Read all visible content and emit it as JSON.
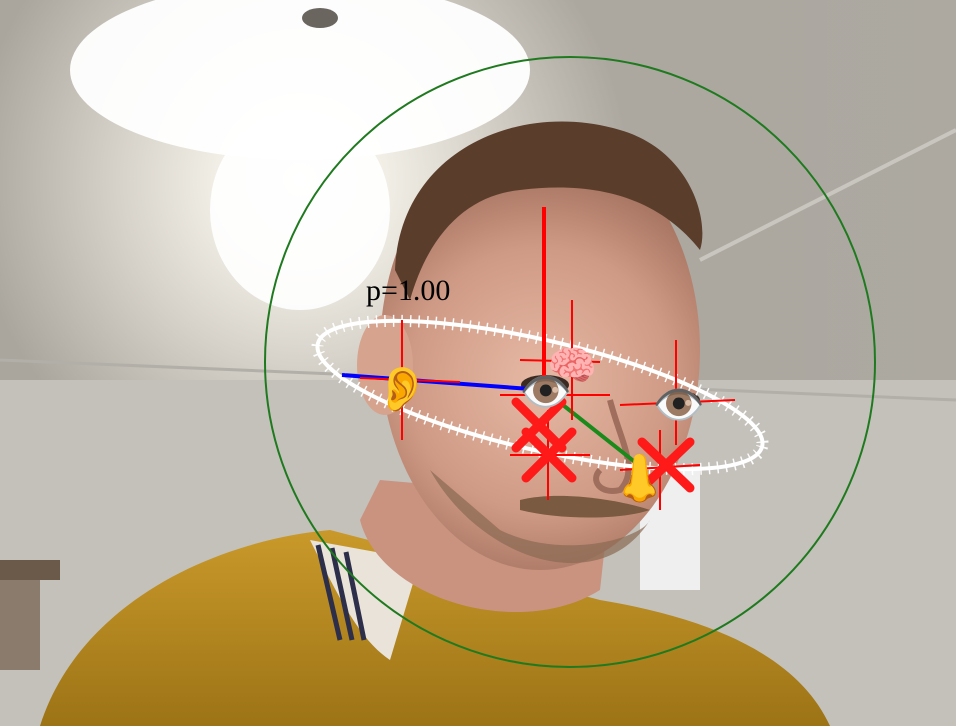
{
  "overlay": {
    "probability_label": "p=1.00",
    "colors": {
      "bounding_circle": "#1f7a1f",
      "axis_up": "#ff0000",
      "axis_forward": "#1a8a1a",
      "axis_side": "#0000ff",
      "landmark_cross": "#ff0000",
      "landmark_x": "#ff0a0a",
      "ellipse_ticks": "#ffffff"
    },
    "landmarks": [
      {
        "name": "left-eye",
        "icon": "eye-icon",
        "glyph": "👁️"
      },
      {
        "name": "right-eye",
        "icon": "eye-icon",
        "glyph": "👁️"
      },
      {
        "name": "nose",
        "icon": "nose-icon",
        "glyph": "👃"
      },
      {
        "name": "ear",
        "icon": "ear-icon",
        "glyph": "👂"
      },
      {
        "name": "brain",
        "icon": "brain-icon",
        "glyph": "🧠"
      }
    ]
  }
}
